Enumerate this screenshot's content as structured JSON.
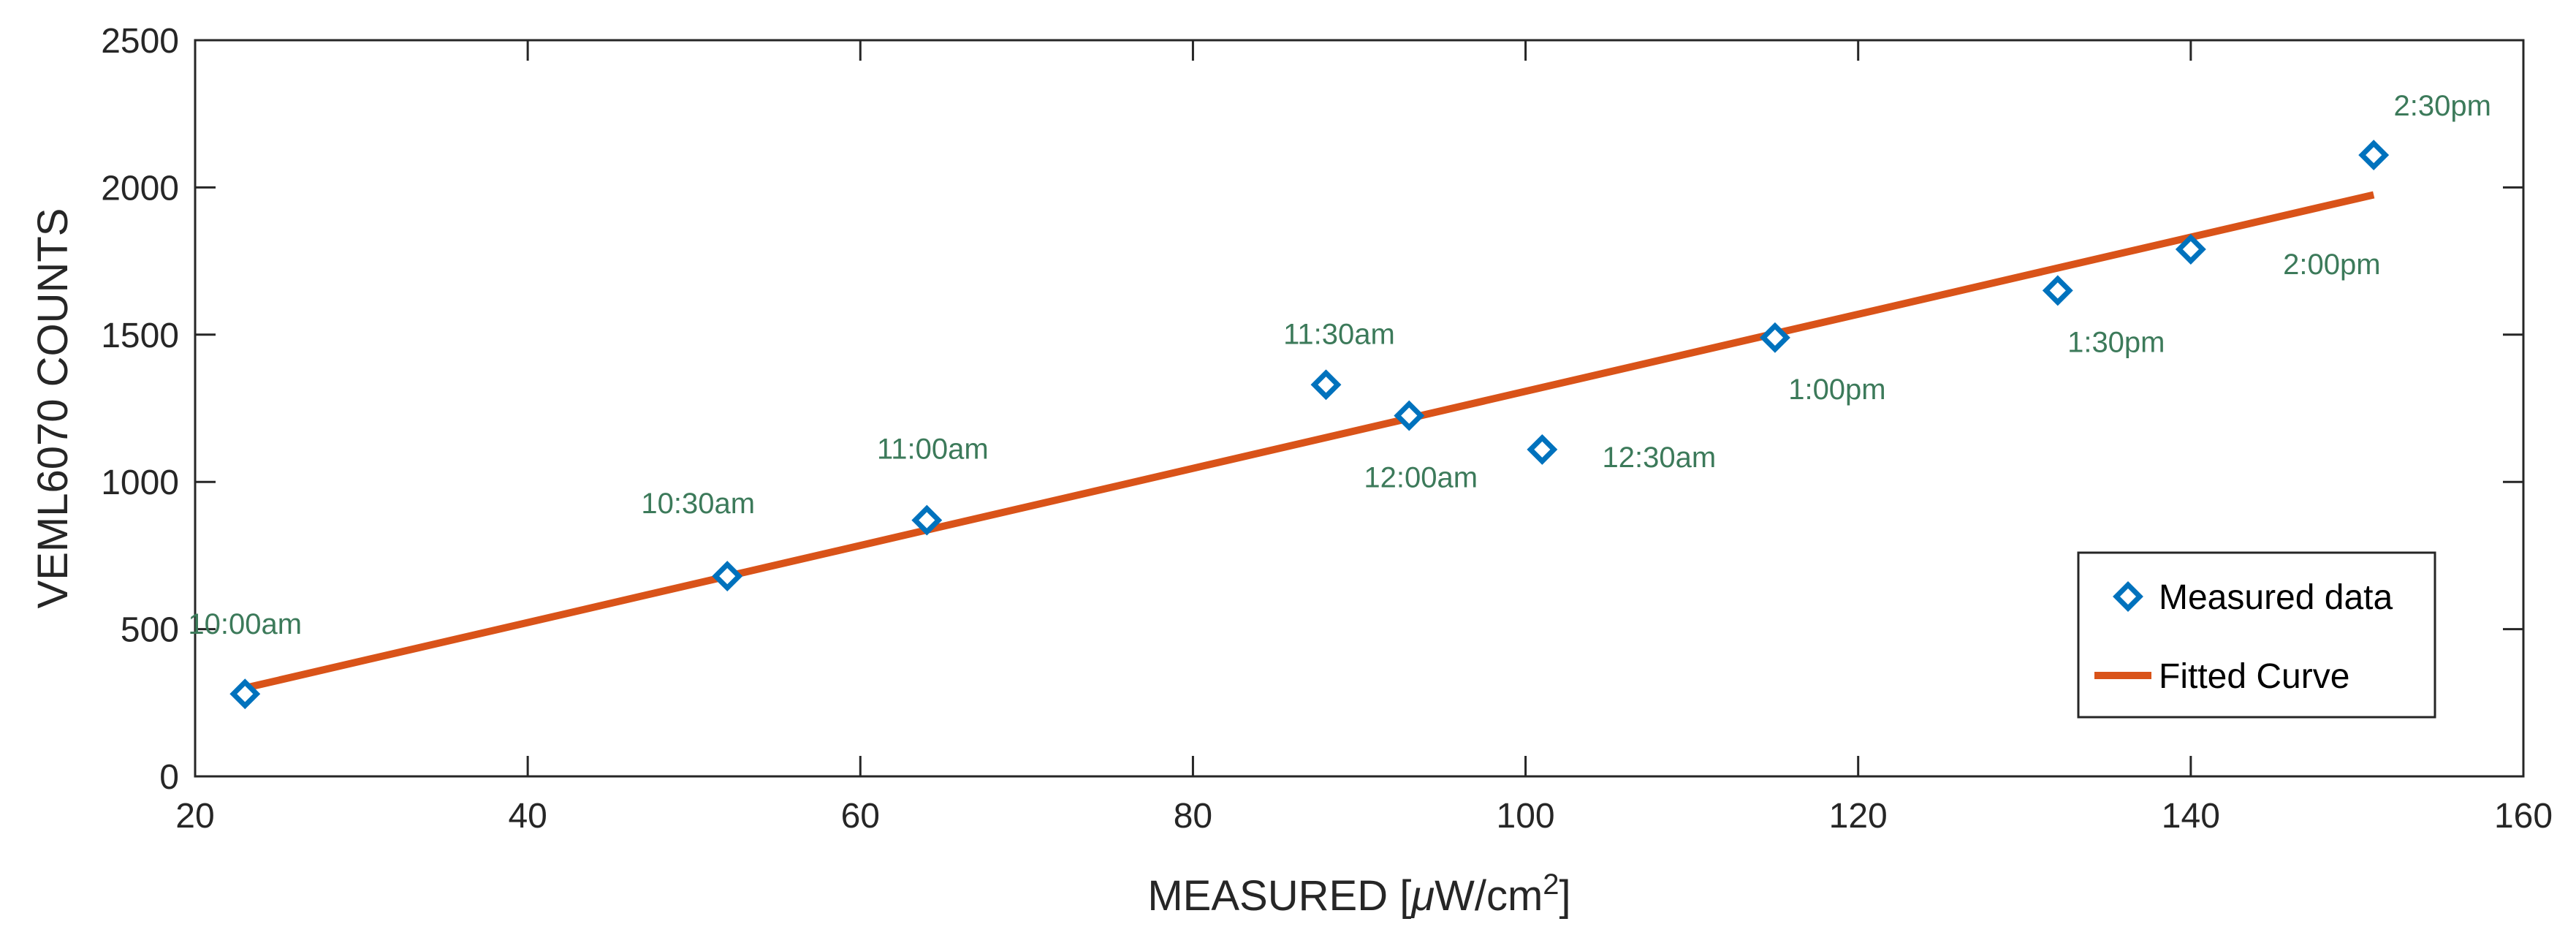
{
  "chart_data": {
    "type": "scatter",
    "xlabel": "MEASURED [μW/cm²]",
    "xlabel_parts": {
      "main": "MEASURED [",
      "mu": "μ",
      "unit": "W/cm",
      "sup": "2",
      "close": "]"
    },
    "ylabel": "VEML6070 COUNTS",
    "xlim": [
      20,
      160
    ],
    "ylim": [
      0,
      2500
    ],
    "xticks": [
      20,
      40,
      60,
      80,
      100,
      120,
      140,
      160
    ],
    "yticks": [
      0,
      500,
      1000,
      1500,
      2000,
      2500
    ],
    "grid": false,
    "legend_position": "bottom-right",
    "series": [
      {
        "name": "Measured data",
        "kind": "scatter",
        "marker": "diamond",
        "color": "#0072BD",
        "x": [
          23,
          52,
          64,
          88,
          93,
          101,
          115,
          132,
          140,
          151
        ],
        "y": [
          280,
          680,
          870,
          1330,
          1225,
          1110,
          1490,
          1650,
          1790,
          2110
        ],
        "labels": [
          "10:00am",
          "10:30am",
          "11:00am",
          "11:30am",
          "12:00am",
          "12:30am",
          "1:00pm",
          "1:30pm",
          "2:00pm",
          "2:30pm"
        ]
      },
      {
        "name": "Fitted Curve",
        "kind": "line",
        "color": "#D95319",
        "x": [
          23,
          151
        ],
        "y": [
          300,
          1975
        ]
      }
    ],
    "annotation_color": "#3C7A5A"
  }
}
